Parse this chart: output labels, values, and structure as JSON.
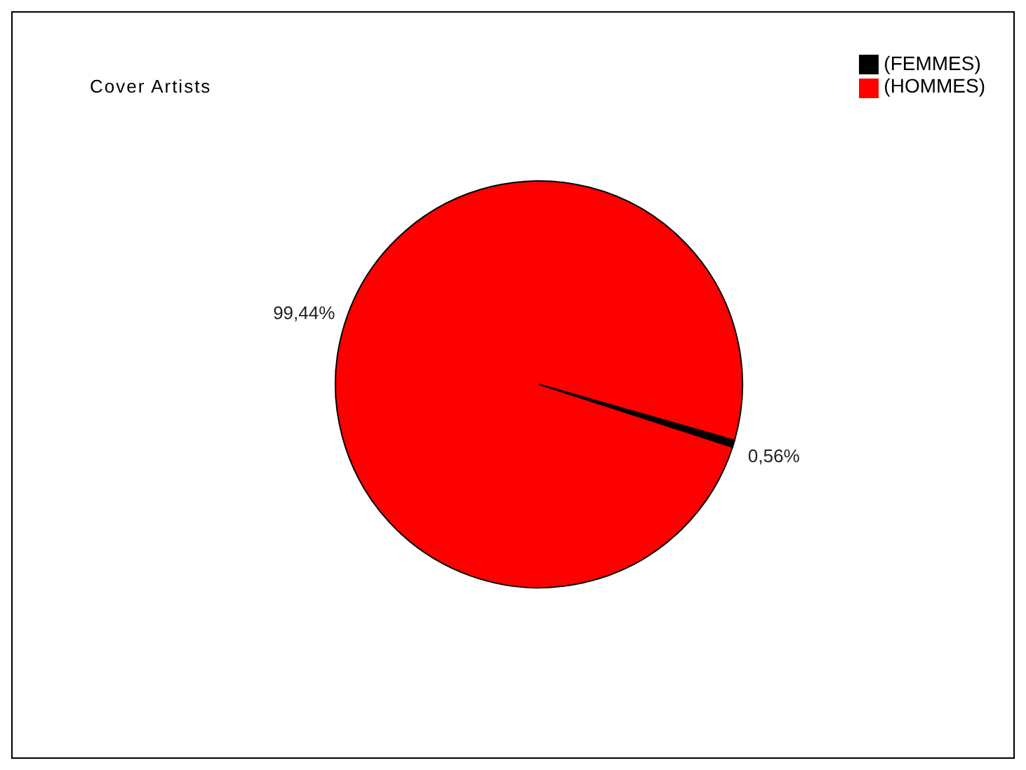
{
  "chart_data": {
    "type": "pie",
    "title": "Cover Artists",
    "categories": [
      "(FEMMES)",
      "(HOMMES)"
    ],
    "values": [
      0.56,
      99.44
    ],
    "colors": [
      "#000000",
      "#ff0000"
    ],
    "value_labels": [
      "0,56%",
      "99,44%"
    ],
    "legend": "top right"
  }
}
